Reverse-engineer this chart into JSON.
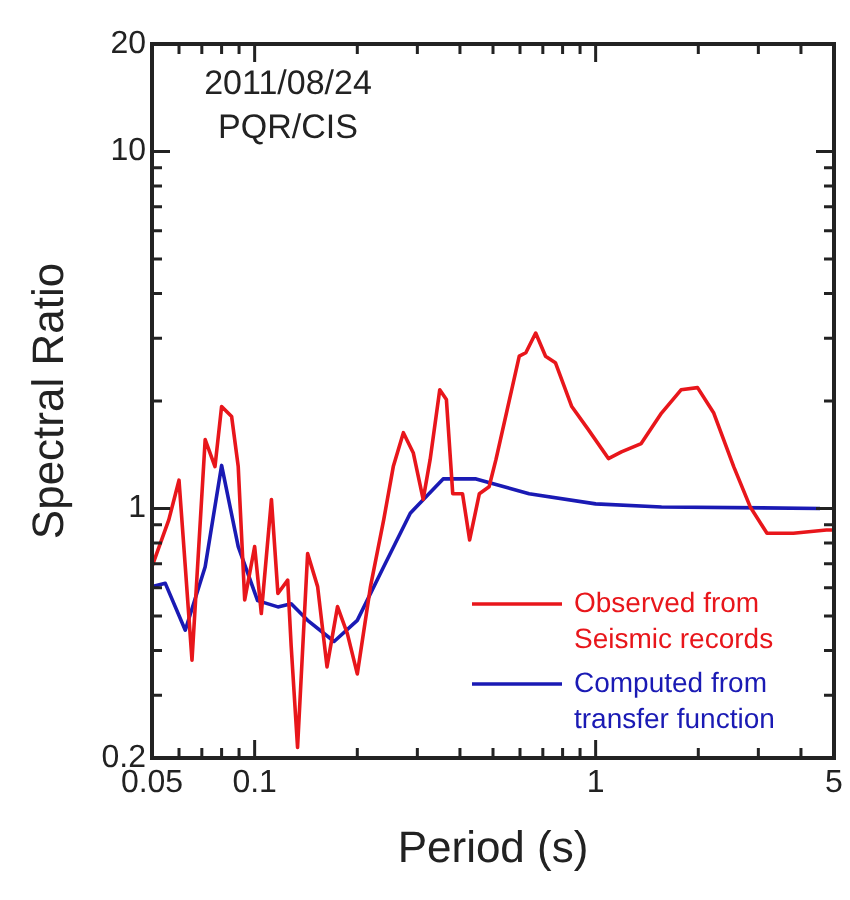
{
  "chart_data": {
    "type": "line",
    "xlabel": "Period (s)",
    "ylabel": "Spectral Ratio",
    "annotations": [
      "2011/08/24",
      "PQR/CIS"
    ],
    "log": "xy",
    "grid": false,
    "legend": "bottom right",
    "marker": "none",
    "line_style": "solid",
    "xlim": [
      0.05,
      5
    ],
    "ylim": [
      0.2,
      20
    ],
    "xticks": [
      0.05,
      {
        "value": 0.06,
        "label": null
      },
      {
        "value": 0.07,
        "label": null
      },
      {
        "value": 0.08,
        "label": null
      },
      {
        "value": 0.09,
        "label": null
      },
      0.1,
      {
        "value": 0.2,
        "label": null
      },
      {
        "value": 0.3,
        "label": null
      },
      {
        "value": 0.4,
        "label": null
      },
      {
        "value": 0.5,
        "label": null
      },
      {
        "value": 0.6,
        "label": null
      },
      {
        "value": 0.7,
        "label": null
      },
      {
        "value": 0.8,
        "label": null
      },
      {
        "value": 0.9,
        "label": null
      },
      1,
      {
        "value": 2,
        "label": null
      },
      {
        "value": 3,
        "label": null
      },
      {
        "value": 4,
        "label": null
      },
      5
    ],
    "yticks": [
      0.2,
      {
        "value": 0.3,
        "label": null
      },
      {
        "value": 0.4,
        "label": null
      },
      {
        "value": 0.5,
        "label": null
      },
      {
        "value": 0.6,
        "label": null
      },
      {
        "value": 0.7,
        "label": null
      },
      {
        "value": 0.8,
        "label": null
      },
      {
        "value": 0.9,
        "label": null
      },
      1,
      {
        "value": 2,
        "label": null
      },
      {
        "value": 3,
        "label": null
      },
      {
        "value": 4,
        "label": null
      },
      {
        "value": 5,
        "label": null
      },
      {
        "value": 6,
        "label": null
      },
      {
        "value": 7,
        "label": null
      },
      {
        "value": 8,
        "label": null
      },
      {
        "value": 9,
        "label": null
      },
      10,
      20
    ],
    "series": [
      {
        "name": "Observed from Seismic records",
        "color": "#e8161b",
        "x": [
          0.05,
          0.056,
          0.06,
          0.0626,
          0.0655,
          0.0716,
          0.0765,
          0.08,
          0.0856,
          0.0895,
          0.0935,
          0.1,
          0.1046,
          0.112,
          0.117,
          0.125,
          0.128,
          0.1336,
          0.143,
          0.153,
          0.163,
          0.175,
          0.187,
          0.2,
          0.2186,
          0.239,
          0.255,
          0.273,
          0.292,
          0.312,
          0.327,
          0.349,
          0.365,
          0.381,
          0.407,
          0.427,
          0.456,
          0.487,
          0.51,
          0.597,
          0.624,
          0.667,
          0.713,
          0.762,
          0.851,
          0.953,
          1.09,
          1.19,
          1.36,
          1.56,
          1.78,
          1.99,
          2.22,
          2.54,
          2.84,
          3.18,
          3.8,
          4.75,
          5
        ],
        "values": [
          0.687,
          0.929,
          1.2,
          0.687,
          0.376,
          1.56,
          1.31,
          1.93,
          1.81,
          1.31,
          0.554,
          0.782,
          0.508,
          1.06,
          0.578,
          0.63,
          0.41,
          0.214,
          0.748,
          0.604,
          0.36,
          0.531,
          0.446,
          0.344,
          0.604,
          0.929,
          1.31,
          1.63,
          1.43,
          1.06,
          1.37,
          2.15,
          2.02,
          1.1,
          1.1,
          0.816,
          1.1,
          1.15,
          1.37,
          2.67,
          2.73,
          3.1,
          2.67,
          2.56,
          1.93,
          1.66,
          1.38,
          1.44,
          1.52,
          1.85,
          2.15,
          2.18,
          1.85,
          1.31,
          1.01,
          0.852,
          0.852,
          0.87,
          0.87
        ]
      },
      {
        "name": "Computed from transfer function",
        "color": "#1a1ab4",
        "x": [
          0.05,
          0.0547,
          0.0626,
          0.0716,
          0.08,
          0.0895,
          0.102,
          0.117,
          0.128,
          0.143,
          0.171,
          0.2,
          0.239,
          0.286,
          0.357,
          0.446,
          0.638,
          1.0,
          1.56,
          4.55
        ],
        "values": [
          0.604,
          0.617,
          0.456,
          0.687,
          1.32,
          0.782,
          0.552,
          0.53,
          0.541,
          0.486,
          0.424,
          0.486,
          0.687,
          0.97,
          1.21,
          1.21,
          1.1,
          1.03,
          1.01,
          1.0
        ]
      }
    ]
  }
}
